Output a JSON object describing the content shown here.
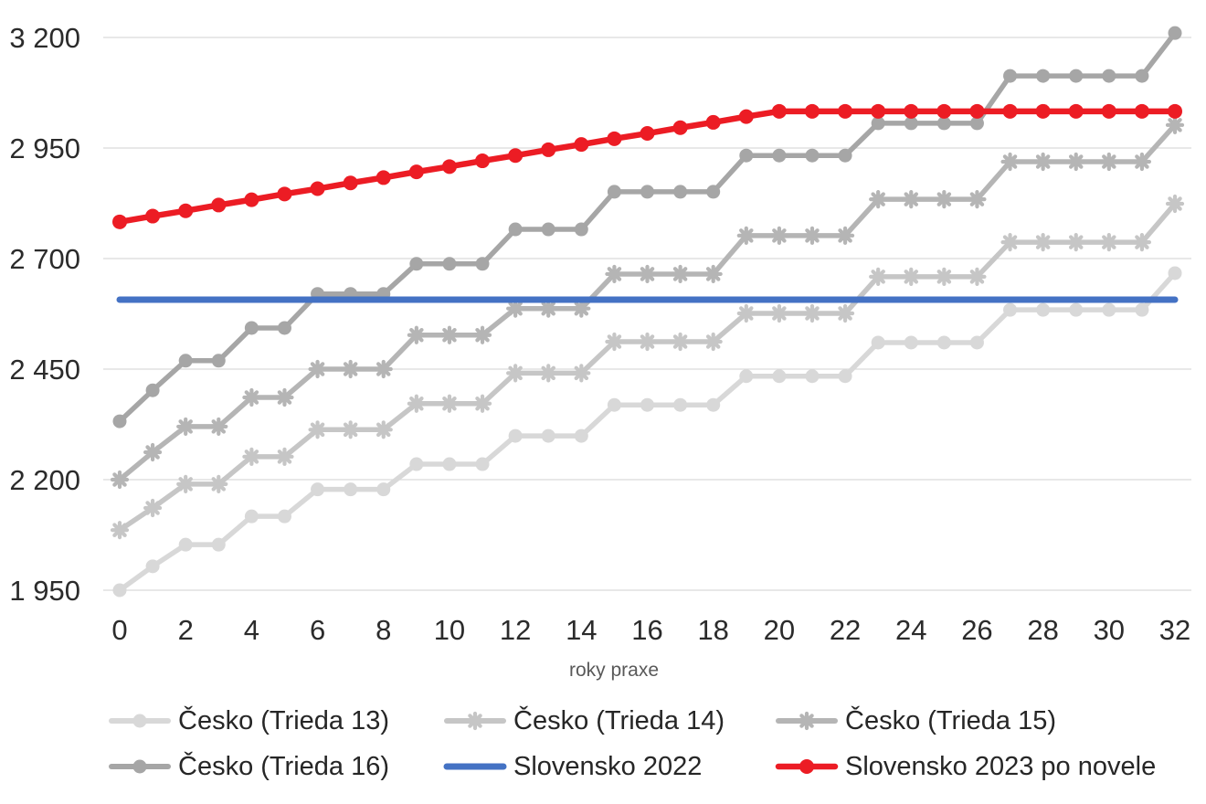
{
  "chart_data": {
    "type": "line",
    "title": "",
    "xlabel": "roky praxe",
    "ylabel": "",
    "x": [
      0,
      1,
      2,
      3,
      4,
      5,
      6,
      7,
      8,
      9,
      10,
      11,
      12,
      13,
      14,
      15,
      16,
      17,
      18,
      19,
      20,
      21,
      22,
      23,
      24,
      25,
      26,
      27,
      28,
      29,
      30,
      31,
      32
    ],
    "xticks": [
      0,
      2,
      4,
      6,
      8,
      10,
      12,
      14,
      16,
      18,
      20,
      22,
      24,
      26,
      28,
      30,
      32
    ],
    "yticks": [
      {
        "value": 3200,
        "label": "3 200"
      },
      {
        "value": 2950,
        "label": "2 950"
      },
      {
        "value": 2700,
        "label": "2 700"
      },
      {
        "value": 2450,
        "label": "2 450"
      },
      {
        "value": 2200,
        "label": "2 200"
      },
      {
        "value": 1950,
        "label": "1 950"
      }
    ],
    "ylim": [
      1950,
      3200
    ],
    "xlim": [
      0,
      32
    ],
    "grid": true,
    "legend_position": "bottom",
    "colors": {
      "grid": "#d9d9d9",
      "axis_text": "#2b2b2b",
      "axis_title_text": "#595959",
      "legend_text": "#262626",
      "background": "#ffffff"
    },
    "step_years": [
      [
        0
      ],
      [
        1
      ],
      [
        2,
        3
      ],
      [
        4,
        5
      ],
      [
        6,
        7,
        8
      ],
      [
        9,
        10,
        11
      ],
      [
        12,
        13,
        14
      ],
      [
        15,
        16,
        17,
        18
      ],
      [
        19,
        20,
        21,
        22
      ],
      [
        23,
        24,
        25,
        26
      ],
      [
        27,
        28,
        29,
        30,
        31
      ],
      [
        32
      ]
    ],
    "series": [
      {
        "name": "Česko (Trieda 13)",
        "color": "#d8d8d8",
        "marker": "circle",
        "marker_size": 7.5,
        "line_width": 5.5,
        "step_values": [
          1950,
          2004,
          2053,
          2117,
          2178,
          2235,
          2299,
          2369,
          2434,
          2510,
          2584,
          2667
        ]
      },
      {
        "name": "Česko (Trieda 14)",
        "color": "#c6c6c6",
        "marker": "star",
        "marker_size": 8,
        "line_width": 5.5,
        "step_values": [
          2086,
          2136,
          2190,
          2252,
          2313,
          2372,
          2441,
          2512,
          2576,
          2659,
          2737,
          2824
        ]
      },
      {
        "name": "Česko (Trieda 15)",
        "color": "#b5b5b5",
        "marker": "star",
        "marker_size": 8,
        "line_width": 5.5,
        "step_values": [
          2200,
          2262,
          2320,
          2386,
          2450,
          2527,
          2587,
          2665,
          2752,
          2834,
          2919,
          3002
        ]
      },
      {
        "name": "Česko (Trieda 16)",
        "color": "#a6a6a6",
        "marker": "circle",
        "marker_size": 7.5,
        "line_width": 5.5,
        "step_values": [
          2332,
          2402,
          2469,
          2543,
          2620,
          2688,
          2766,
          2851,
          2933,
          3006,
          3113,
          3210
        ]
      },
      {
        "name": "Slovensko 2022",
        "color": "#4472c4",
        "marker": "none",
        "marker_size": 0,
        "line_width": 7,
        "value": 2607
      },
      {
        "name": "Slovensko 2023 po novele",
        "color": "#ec1c24",
        "marker": "circle",
        "marker_size": 8,
        "line_width": 6.5,
        "values": [
          2783,
          2796,
          2808,
          2821,
          2833,
          2846,
          2858,
          2871,
          2883,
          2896,
          2908,
          2921,
          2933,
          2946,
          2958,
          2971,
          2983,
          2996,
          3008,
          3021,
          3033,
          3033,
          3033,
          3033,
          3033,
          3033,
          3033,
          3033,
          3033,
          3033,
          3033,
          3033,
          3033
        ]
      }
    ]
  }
}
